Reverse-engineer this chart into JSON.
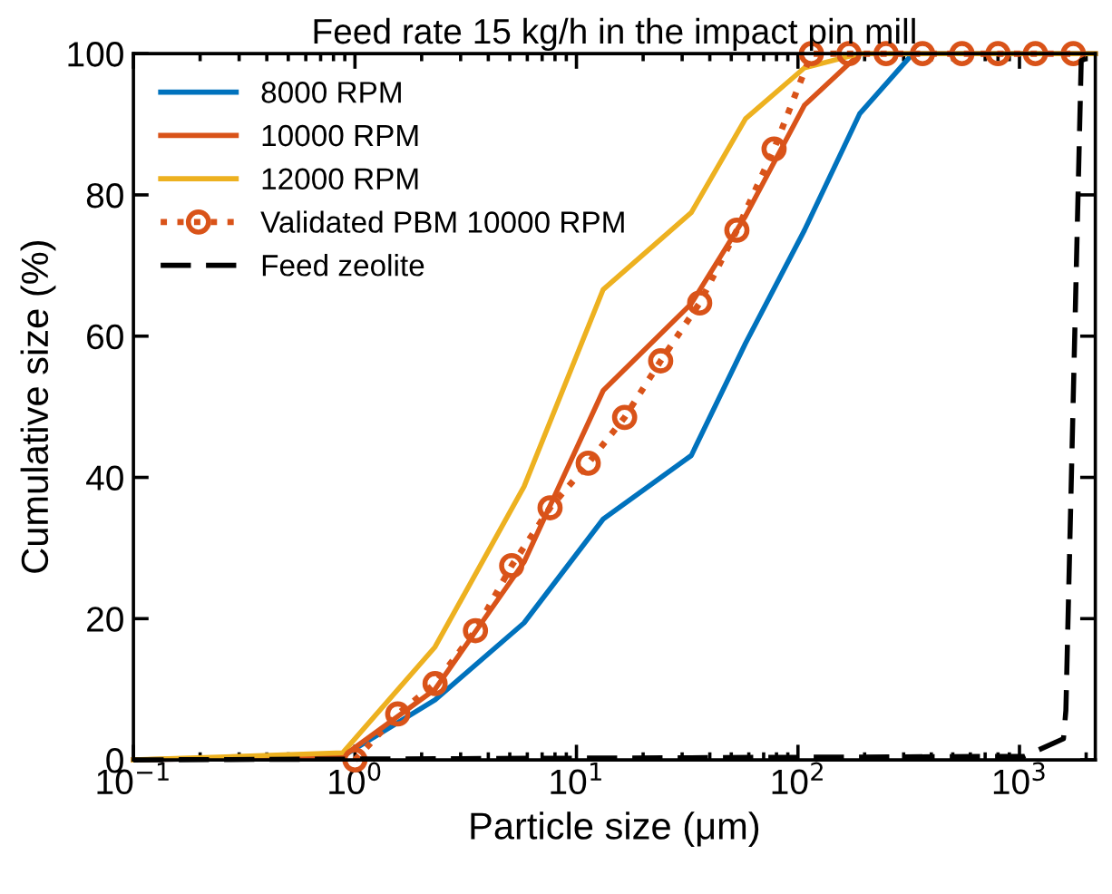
{
  "chart_data": {
    "type": "line",
    "title": "Feed rate 15 kg/h in the impact pin mill",
    "xlabel": "Particle size (μm)",
    "ylabel": "Cumulative size (%)",
    "log": "x",
    "xlim": [
      0.1,
      2200
    ],
    "ylim": [
      0,
      100
    ],
    "xticks": [
      {
        "value": 0.1,
        "label": "10$^{−1}$"
      },
      {
        "value": 1,
        "label": "10$^{0}$"
      },
      {
        "value": 10,
        "label": "10$^{1}$"
      },
      {
        "value": 100,
        "label": "10$^{2}$"
      },
      {
        "value": 1000,
        "label": "10$^{3}$"
      }
    ],
    "yticks": [
      0,
      20,
      40,
      60,
      80,
      100
    ],
    "grid": false,
    "legend": "top left",
    "series": [
      {
        "name": "8000 RPM",
        "color": "#0072bd",
        "line_style": "solid",
        "marker": "none",
        "x": [
          0.1,
          0.88,
          2.3,
          5.8,
          13.2,
          33,
          58,
          107,
          190,
          330,
          2200
        ],
        "values": [
          0,
          0.5,
          8.5,
          19.4,
          34.1,
          43.1,
          59,
          75,
          91.5,
          100,
          100
        ]
      },
      {
        "name": "10000 RPM",
        "color": "#d95319",
        "line_style": "solid",
        "marker": "none",
        "x": [
          0.1,
          0.88,
          2.3,
          5.8,
          13.2,
          33,
          58,
          107,
          190,
          2200
        ],
        "values": [
          0,
          0.5,
          10,
          28,
          52.3,
          64.6,
          77,
          92.7,
          100,
          100
        ]
      },
      {
        "name": "12000 RPM",
        "color": "#edb120",
        "line_style": "solid",
        "marker": "none",
        "x": [
          0.1,
          0.88,
          2.3,
          5.8,
          13.2,
          33,
          58,
          107,
          190,
          2200
        ],
        "values": [
          0,
          1,
          16,
          38.7,
          66.6,
          77.5,
          90.8,
          98,
          100,
          100
        ]
      },
      {
        "name": "Validated PBM 10000 RPM",
        "color": "#d95319",
        "line_style": "dotted",
        "marker": "circle",
        "x": [
          1.0,
          1.56,
          2.3,
          3.5,
          5.1,
          7.6,
          11.3,
          16.5,
          24,
          36,
          53,
          78,
          115,
          170,
          250,
          365,
          550,
          800,
          1180,
          1750
        ],
        "values": [
          0,
          6.5,
          10.8,
          18.3,
          27.5,
          35.7,
          42,
          48.5,
          56.5,
          64.7,
          75,
          86.5,
          100,
          100,
          100,
          100,
          100,
          100,
          100,
          100
        ]
      },
      {
        "name": "Feed zeolite",
        "color": "#000000",
        "line_style": "dashed",
        "marker": "none",
        "x": [
          0.1,
          1050,
          1580,
          1620,
          1900,
          2200
        ],
        "values": [
          0,
          0.5,
          3,
          7,
          99,
          100
        ]
      }
    ]
  }
}
